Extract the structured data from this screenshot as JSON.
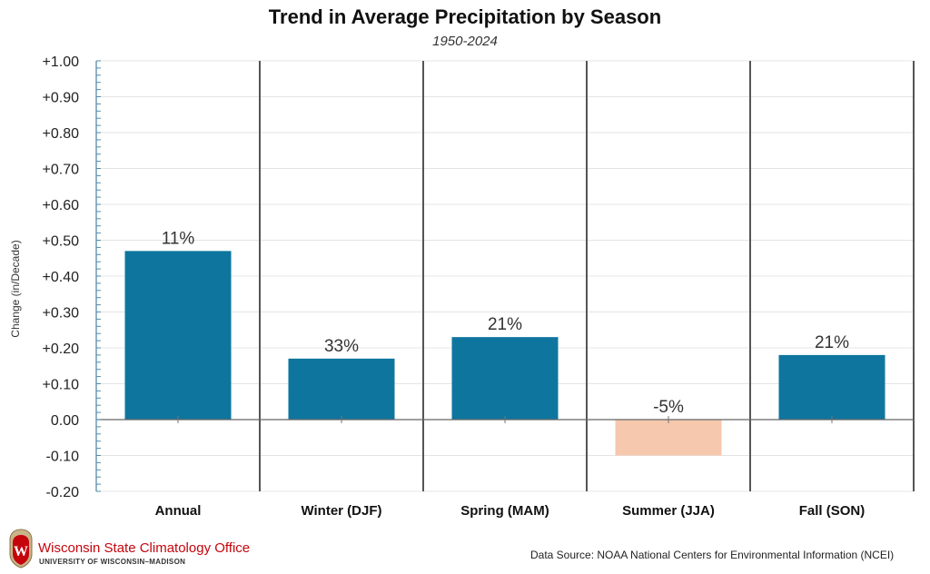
{
  "chart_data": {
    "type": "bar",
    "title": "Trend in Average Precipitation by Season",
    "subtitle": "1950-2024",
    "xlabel": "",
    "ylabel": "Change (in/Decade)",
    "categories": [
      "Annual",
      "Winter (DJF)",
      "Spring (MAM)",
      "Summer (JJA)",
      "Fall (SON)"
    ],
    "values": [
      0.47,
      0.17,
      0.23,
      -0.1,
      0.18
    ],
    "data_labels": [
      "11%",
      "33%",
      "21%",
      "-5%",
      "21%"
    ],
    "ylim": [
      -0.2,
      1.0
    ],
    "yticks": [
      1.0,
      0.9,
      0.8,
      0.7,
      0.6,
      0.5,
      0.4,
      0.3,
      0.2,
      0.1,
      0.0,
      -0.1,
      -0.2
    ],
    "ytick_labels": [
      "+1.00",
      "+0.90",
      "+0.80",
      "+0.70",
      "+0.60",
      "+0.50",
      "+0.40",
      "+0.30",
      "+0.20",
      "+0.10",
      "0.00",
      "-0.10",
      "-0.20"
    ],
    "grid": true,
    "colors": {
      "positive": "#0e769e",
      "negative": "#f6c8ae",
      "axis": "#8fb4c8",
      "separator": "#555555",
      "gridline": "#e4e4e4"
    }
  },
  "footer": {
    "org_name": "Wisconsin State Climatology Office",
    "org_sub": "UNIVERSITY OF WISCONSIN–MADISON",
    "source": "Data Source: NOAA National Centers for Environmental Information (NCEI)"
  }
}
